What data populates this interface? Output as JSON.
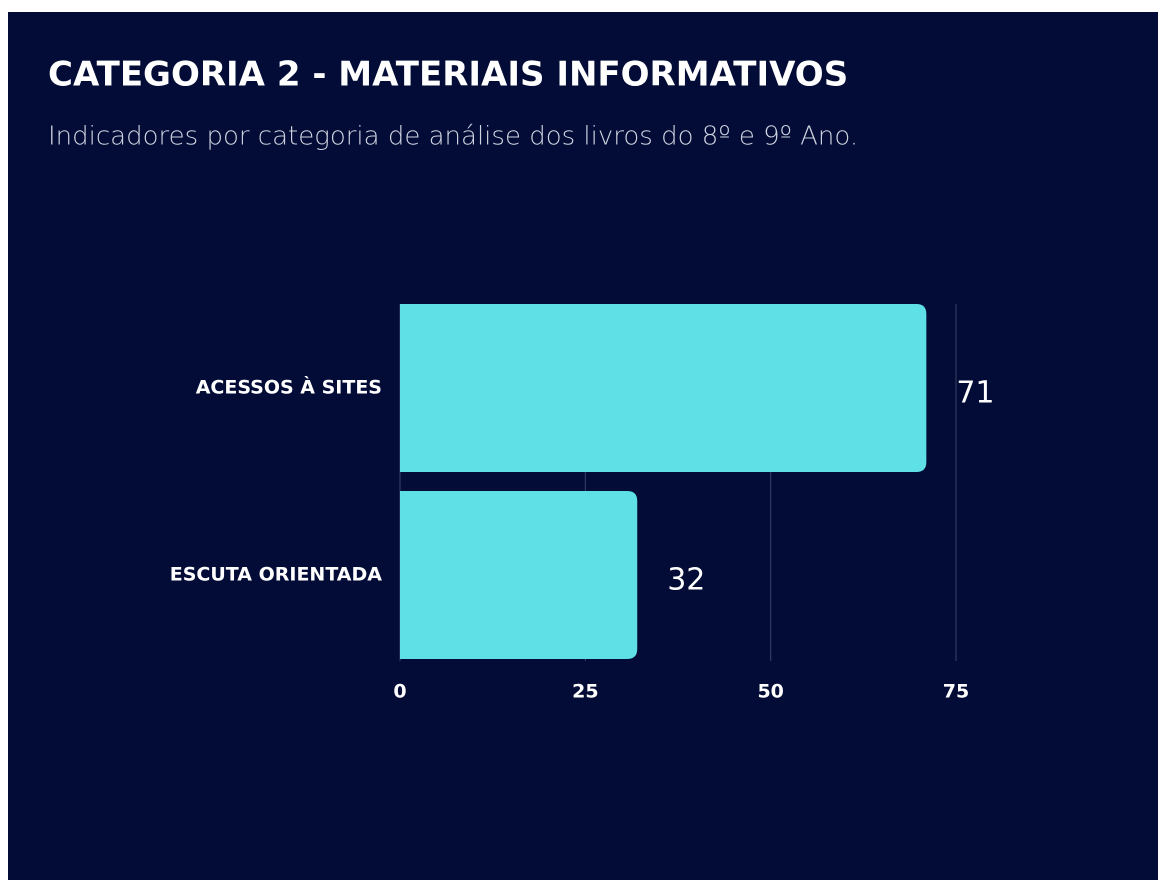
{
  "chart_data": {
    "type": "bar",
    "orientation": "horizontal",
    "title": "CATEGORIA 2 - MATERIAIS INFORMATIVOS",
    "subtitle": "Indicadores  por categoria de análise dos livros do 8º e 9º Ano.",
    "categories": [
      "ACESSOS À SITES",
      "ESCUTA ORIENTADA"
    ],
    "values": [
      71,
      32
    ],
    "color": "#5ee0e6",
    "xlim": [
      0,
      75
    ],
    "xticks": [
      0,
      25,
      50,
      75
    ],
    "grid": true
  }
}
